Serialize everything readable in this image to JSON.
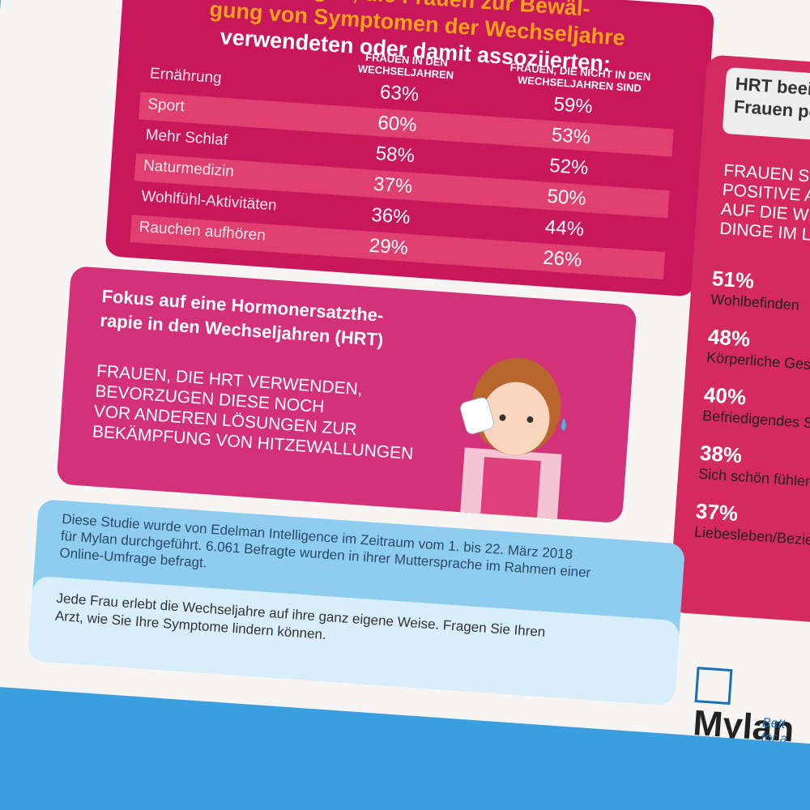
{
  "header": {
    "title_lines": [
      "Lösungen, die Frauen zur Bewäl-",
      "gung von Symptomen der Wechseljahre",
      "verwendeten oder damit assoziierten:"
    ]
  },
  "table": {
    "columns": [
      "FRAUEN IN DEN WECHSELJAHREN",
      "FRAUEN, DIE NICHT IN DEN WECHSELJAHREN SIND"
    ],
    "rows": [
      {
        "label": "Ernährung",
        "values": [
          "63%",
          "59%"
        ]
      },
      {
        "label": "Sport",
        "values": [
          "60%",
          "53%"
        ]
      },
      {
        "label": "Mehr Schlaf",
        "values": [
          "58%",
          "52%"
        ]
      },
      {
        "label": "Naturmedizin",
        "values": [
          "37%",
          "50%"
        ]
      },
      {
        "label": "Wohlfühl-Aktivitäten",
        "values": [
          "36%",
          "44%"
        ]
      },
      {
        "label": "Rauchen aufhören",
        "values": [
          "29%",
          "26%"
        ]
      }
    ]
  },
  "hrt": {
    "title_lines": [
      "Fokus auf eine Hormonersatzthe-",
      "rapie in den Wechseljahren (HRT)"
    ],
    "text_lines": [
      "FRAUEN, DIE HRT VERWENDEN,",
      "BEVORZUGEN DIESE NOCH",
      "VOR ANDEREN LÖSUNGEN ZUR",
      "BEKÄMPFUNG VON HITZEWALLUNGEN"
    ]
  },
  "right_panel": {
    "title_lines": [
      "HRT beein",
      "Frauen po"
    ],
    "intro_lines": [
      "FRAUEN SEH",
      "POSITIVE AUS",
      "AUF DIE WICH",
      "DINGE IM LEB"
    ],
    "stats": [
      {
        "value": "51%",
        "label": "Wohlbefinden"
      },
      {
        "value": "48%",
        "label": "Körperliche Gesun"
      },
      {
        "value": "40%",
        "label": "Befriedigendes Sexu"
      },
      {
        "value": "38%",
        "label": "Sich schön fühlen"
      },
      {
        "value": "37%",
        "label": "Liebesleben/Beziehung"
      }
    ]
  },
  "footer": {
    "study_lines": [
      "Diese Studie wurde von Edelman Intelligence im Zeitraum vom 1. bis 22. März 2018",
      "für Mylan durchgeführt. 6.061 Befragte wurden in ihrer Muttersprache im Rahmen einer",
      "Online-Umfrage befragt."
    ],
    "note_lines": [
      "Jede Frau erlebt die Wechseljahre auf ihre ganz eigene Weise. Fragen Sie Ihren",
      "Arzt, wie Sie Ihre Symptome lindern können."
    ],
    "logo": "Mylan",
    "tagline_lines": [
      "Bett",
      "for a"
    ]
  }
}
